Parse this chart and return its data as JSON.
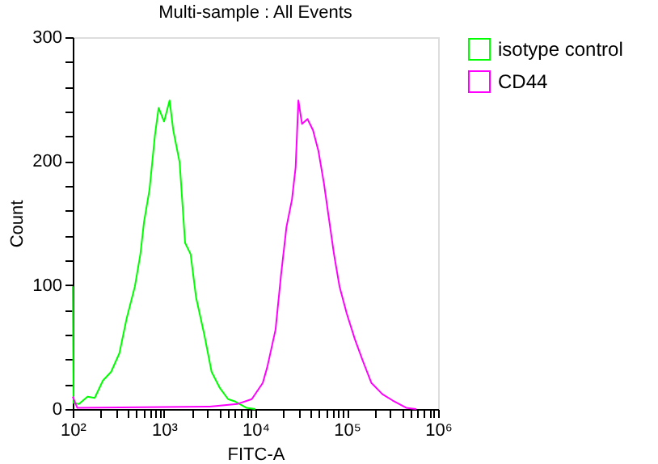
{
  "chart_data": {
    "type": "line",
    "title": "Multi-sample : All Events",
    "xlabel": "FITC-A",
    "ylabel": "Count",
    "log": "x",
    "grid": false,
    "legend": "top right",
    "marker": "none",
    "line_style": "solid",
    "xlim": [
      100,
      1000000
    ],
    "xticks": [
      {
        "value": 100,
        "label": "10²"
      },
      {
        "value": 200,
        "label": null
      },
      {
        "value": 300,
        "label": null
      },
      {
        "value": 400,
        "label": null
      },
      {
        "value": 500,
        "label": null
      },
      {
        "value": 600,
        "label": null
      },
      {
        "value": 700,
        "label": null
      },
      {
        "value": 800,
        "label": null
      },
      {
        "value": 900,
        "label": null
      },
      {
        "value": 1000,
        "label": "10³"
      },
      {
        "value": 2000,
        "label": null
      },
      {
        "value": 3000,
        "label": null
      },
      {
        "value": 4000,
        "label": null
      },
      {
        "value": 5000,
        "label": null
      },
      {
        "value": 6000,
        "label": null
      },
      {
        "value": 7000,
        "label": null
      },
      {
        "value": 8000,
        "label": null
      },
      {
        "value": 9000,
        "label": null
      },
      {
        "value": 10000,
        "label": "10⁴"
      },
      {
        "value": 20000,
        "label": null
      },
      {
        "value": 30000,
        "label": null
      },
      {
        "value": 40000,
        "label": null
      },
      {
        "value": 50000,
        "label": null
      },
      {
        "value": 60000,
        "label": null
      },
      {
        "value": 70000,
        "label": null
      },
      {
        "value": 80000,
        "label": null
      },
      {
        "value": 90000,
        "label": null
      },
      {
        "value": 100000,
        "label": "10⁵"
      },
      {
        "value": 200000,
        "label": null
      },
      {
        "value": 300000,
        "label": null
      },
      {
        "value": 400000,
        "label": null
      },
      {
        "value": 500000,
        "label": null
      },
      {
        "value": 600000,
        "label": null
      },
      {
        "value": 700000,
        "label": null
      },
      {
        "value": 800000,
        "label": null
      },
      {
        "value": 900000,
        "label": null
      },
      {
        "value": 1000000,
        "label": "10⁶"
      }
    ],
    "ylim": [
      0,
      300
    ],
    "yticks": [
      0,
      {
        "value": 20,
        "label": null
      },
      {
        "value": 40,
        "label": null
      },
      {
        "value": 60,
        "label": null
      },
      {
        "value": 80,
        "label": null
      },
      100,
      {
        "value": 120,
        "label": null
      },
      {
        "value": 140,
        "label": null
      },
      {
        "value": 160,
        "label": null
      },
      {
        "value": 180,
        "label": null
      },
      200,
      {
        "value": 220,
        "label": null
      },
      {
        "value": 240,
        "label": null
      },
      {
        "value": 260,
        "label": null
      },
      {
        "value": 280,
        "label": null
      },
      300
    ],
    "series": [
      {
        "name": "isotype control",
        "color": "#00ff00",
        "x": [
          100,
          102,
          117,
          145,
          174,
          214,
          263,
          324,
          389,
          479,
          550,
          603,
          692,
          794,
          871,
          1000,
          1148,
          1259,
          1479,
          1698,
          1950,
          2239,
          2754,
          3311,
          4074,
          5012,
          6026,
          7943,
          10000
        ],
        "values": [
          99,
          5,
          4,
          10,
          9,
          23,
          30,
          45,
          73,
          99,
          125,
          151,
          177,
          221,
          243,
          232,
          249,
          225,
          199,
          134,
          125,
          90,
          60,
          30,
          17,
          8,
          6,
          1,
          0
        ]
      },
      {
        "name": "CD44",
        "color": "#ff00ff",
        "x": [
          100,
          112,
          3162,
          6310,
          9120,
          12023,
          13490,
          16596,
          19055,
          21878,
          25119,
          27542,
          29512,
          32359,
          37154,
          42658,
          48978,
          56234,
          63096,
          72444,
          83176,
          100000,
          123027,
          151356,
          186209,
          245471,
          316228,
          446684,
          575440
        ],
        "values": [
          10,
          1,
          2,
          4,
          8,
          21,
          34,
          64,
          108,
          147,
          169,
          195,
          249,
          230,
          234,
          225,
          208,
          182,
          156,
          125,
          99,
          77,
          56,
          38,
          21,
          12,
          7,
          1,
          0
        ]
      }
    ]
  }
}
